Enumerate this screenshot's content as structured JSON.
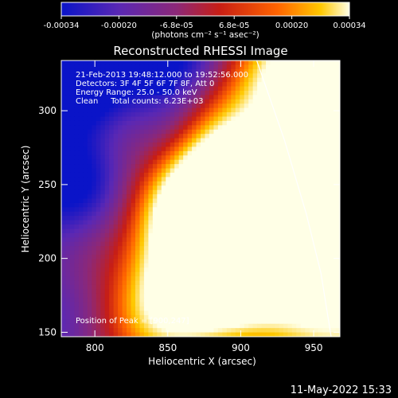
{
  "chart_data": {
    "type": "heatmap",
    "title": "Reconstructed RHESSI Image",
    "xlabel": "Heliocentric X (arcsec)",
    "ylabel": "Heliocentric Y (arcsec)",
    "xlim": [
      777,
      968
    ],
    "ylim": [
      147,
      334
    ],
    "x_ticks": [
      "800",
      "850",
      "900",
      "950"
    ],
    "y_ticks": [
      "150",
      "200",
      "250",
      "300"
    ],
    "colorbar": {
      "ticks": [
        "-0.00034",
        "-0.00020",
        "-6.8e-05",
        "6.8e-05",
        "0.00020",
        "0.00034"
      ],
      "units": "(photons cm⁻² s⁻¹ asec⁻²)",
      "range": [
        -0.00034,
        0.00034
      ],
      "colors": [
        "#0a14c8",
        "#5a28b4",
        "#8c2878",
        "#c81e14",
        "#ff6400",
        "#ffc800",
        "#ffffe6"
      ]
    },
    "annotations": {
      "time": "21-Feb-2013 19:48:12.000 to 19:52:56.000",
      "detectors": "Detectors: 3F 4F 5F 6F 7F 8F, Att 0",
      "energy": "Energy Range: 25.0 - 50.0 keV",
      "clean": "Clean     Total counts: 6.23E+03",
      "peak": "Position of Peak = [900,247]"
    },
    "peak": [
      900,
      247
    ],
    "limb_curve": [
      [
        911,
        334
      ],
      [
        930,
        280
      ],
      [
        945,
        230
      ],
      [
        955,
        190
      ],
      [
        962,
        147
      ]
    ]
  },
  "footer": {
    "date": "11-May-2022 15:33"
  }
}
